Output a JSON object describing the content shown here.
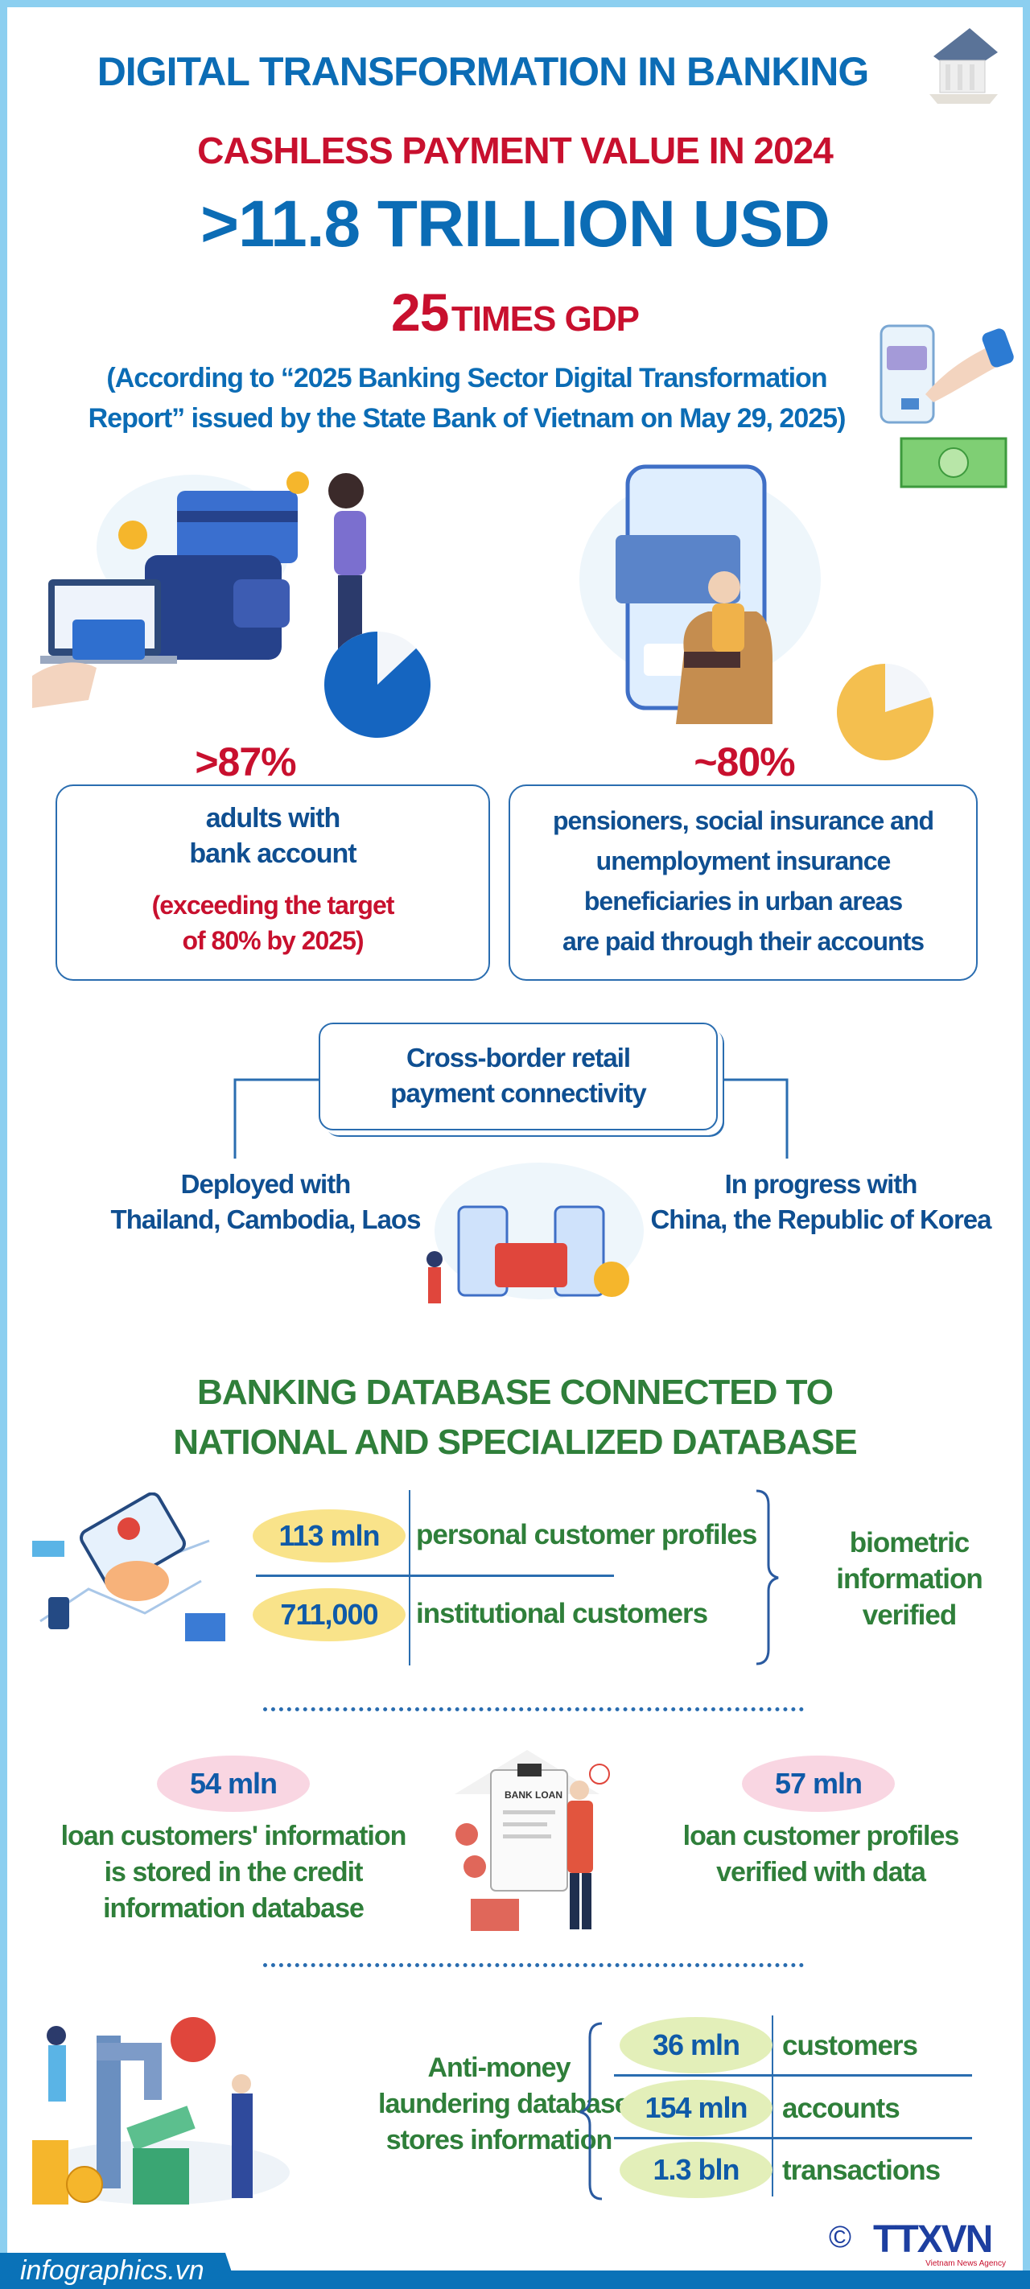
{
  "header": {
    "title": "DIGITAL TRANSFORMATION IN BANKING",
    "subtitle": "CASHLESS PAYMENT VALUE IN 2024",
    "value": ">11.8 TRILLION USD",
    "gdp_number": "25",
    "gdp_text": "TIMES GDP",
    "source_line1": "(According to “2025 Banking Sector Digital Transformation",
    "source_line2": "Report” issued by the State Bank of Vietnam on May 29, 2025)"
  },
  "stats": [
    {
      "percent": ">87%",
      "pie_fraction": 0.87,
      "pie_color": "#1565c0",
      "line1": "adults with",
      "line2": "bank account",
      "note1": "(exceeding the target",
      "note2": "of 80% by 2025)"
    },
    {
      "percent": "~80%",
      "pie_fraction": 0.8,
      "pie_color": "#f4bf4f",
      "lines": [
        "pensioners, social insurance and",
        "unemployment insurance",
        "beneficiaries in urban areas",
        "are paid through their accounts"
      ]
    }
  ],
  "cross_border": {
    "title1": "Cross-border retail",
    "title2": "payment connectivity",
    "left1": "Deployed with",
    "left2": "Thailand, Cambodia, Laos",
    "right1": "In progress with",
    "right2": "China, the Republic of Korea"
  },
  "database": {
    "heading1": "BANKING DATABASE CONNECTED TO",
    "heading2": "NATIONAL AND SPECIALIZED DATABASE",
    "rows": [
      {
        "value": "113 mln",
        "label": "personal customer profiles"
      },
      {
        "value": "711,000",
        "label": "institutional customers"
      }
    ],
    "side": [
      "biometric",
      "information",
      "verified"
    ]
  },
  "loans": {
    "left_value": "54 mln",
    "left_lines": [
      "loan customers' information",
      "is stored in the credit",
      "information database"
    ],
    "right_value": "57 mln",
    "right_lines": [
      "loan customer profiles",
      "verified with data"
    ],
    "doc_label": "BANK LOAN"
  },
  "aml": {
    "lines": [
      "Anti-money",
      "laundering database",
      "stores information"
    ],
    "rows": [
      {
        "value": "36 mln",
        "label": "customers"
      },
      {
        "value": "154 mln",
        "label": "accounts"
      },
      {
        "value": "1.3 bln",
        "label": "transactions"
      }
    ]
  },
  "footer": {
    "site": "infographics.vn",
    "copyright": "©",
    "logo": "TTXVN",
    "agency": "Vietnam News Agency"
  },
  "colors": {
    "blue": "#0b6cb5",
    "red": "#c8102e",
    "green": "#2f7f3a",
    "frame": "#8ccff0",
    "yellow_badge": "#f9e38a",
    "pink_badge": "#f9d6e2",
    "green_badge": "#e3efb9"
  }
}
